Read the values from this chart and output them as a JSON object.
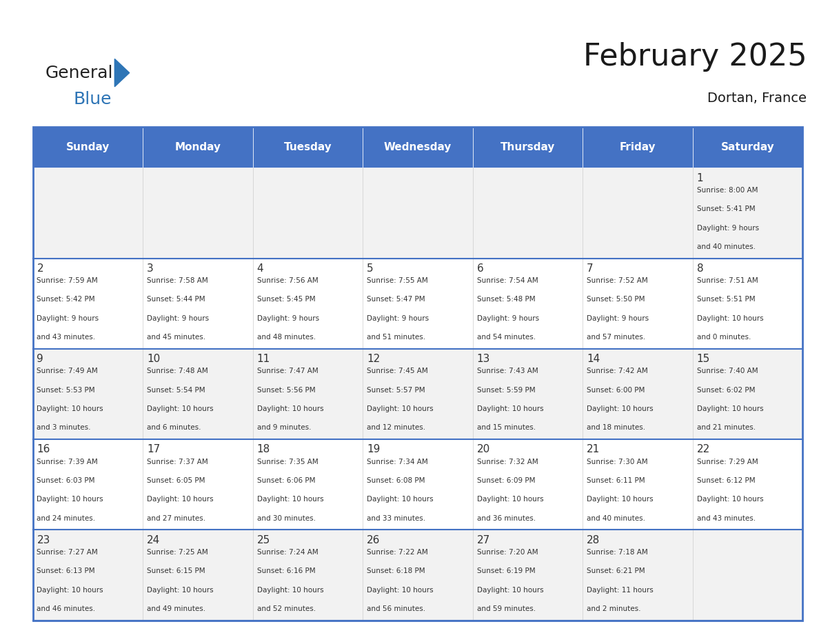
{
  "title": "February 2025",
  "subtitle": "Dortan, France",
  "header_bg": "#4472C4",
  "header_text_color": "#FFFFFF",
  "day_names": [
    "Sunday",
    "Monday",
    "Tuesday",
    "Wednesday",
    "Thursday",
    "Friday",
    "Saturday"
  ],
  "cell_bg_even": "#F2F2F2",
  "cell_bg_odd": "#FFFFFF",
  "border_color": "#4472C4",
  "text_color": "#333333",
  "number_color": "#333333",
  "calendar": [
    [
      null,
      null,
      null,
      null,
      null,
      null,
      {
        "day": 1,
        "sunrise": "8:00 AM",
        "sunset": "5:41 PM",
        "daylight": "9 hours and 40 minutes."
      }
    ],
    [
      {
        "day": 2,
        "sunrise": "7:59 AM",
        "sunset": "5:42 PM",
        "daylight": "9 hours and 43 minutes."
      },
      {
        "day": 3,
        "sunrise": "7:58 AM",
        "sunset": "5:44 PM",
        "daylight": "9 hours and 45 minutes."
      },
      {
        "day": 4,
        "sunrise": "7:56 AM",
        "sunset": "5:45 PM",
        "daylight": "9 hours and 48 minutes."
      },
      {
        "day": 5,
        "sunrise": "7:55 AM",
        "sunset": "5:47 PM",
        "daylight": "9 hours and 51 minutes."
      },
      {
        "day": 6,
        "sunrise": "7:54 AM",
        "sunset": "5:48 PM",
        "daylight": "9 hours and 54 minutes."
      },
      {
        "day": 7,
        "sunrise": "7:52 AM",
        "sunset": "5:50 PM",
        "daylight": "9 hours and 57 minutes."
      },
      {
        "day": 8,
        "sunrise": "7:51 AM",
        "sunset": "5:51 PM",
        "daylight": "10 hours and 0 minutes."
      }
    ],
    [
      {
        "day": 9,
        "sunrise": "7:49 AM",
        "sunset": "5:53 PM",
        "daylight": "10 hours and 3 minutes."
      },
      {
        "day": 10,
        "sunrise": "7:48 AM",
        "sunset": "5:54 PM",
        "daylight": "10 hours and 6 minutes."
      },
      {
        "day": 11,
        "sunrise": "7:47 AM",
        "sunset": "5:56 PM",
        "daylight": "10 hours and 9 minutes."
      },
      {
        "day": 12,
        "sunrise": "7:45 AM",
        "sunset": "5:57 PM",
        "daylight": "10 hours and 12 minutes."
      },
      {
        "day": 13,
        "sunrise": "7:43 AM",
        "sunset": "5:59 PM",
        "daylight": "10 hours and 15 minutes."
      },
      {
        "day": 14,
        "sunrise": "7:42 AM",
        "sunset": "6:00 PM",
        "daylight": "10 hours and 18 minutes."
      },
      {
        "day": 15,
        "sunrise": "7:40 AM",
        "sunset": "6:02 PM",
        "daylight": "10 hours and 21 minutes."
      }
    ],
    [
      {
        "day": 16,
        "sunrise": "7:39 AM",
        "sunset": "6:03 PM",
        "daylight": "10 hours and 24 minutes."
      },
      {
        "day": 17,
        "sunrise": "7:37 AM",
        "sunset": "6:05 PM",
        "daylight": "10 hours and 27 minutes."
      },
      {
        "day": 18,
        "sunrise": "7:35 AM",
        "sunset": "6:06 PM",
        "daylight": "10 hours and 30 minutes."
      },
      {
        "day": 19,
        "sunrise": "7:34 AM",
        "sunset": "6:08 PM",
        "daylight": "10 hours and 33 minutes."
      },
      {
        "day": 20,
        "sunrise": "7:32 AM",
        "sunset": "6:09 PM",
        "daylight": "10 hours and 36 minutes."
      },
      {
        "day": 21,
        "sunrise": "7:30 AM",
        "sunset": "6:11 PM",
        "daylight": "10 hours and 40 minutes."
      },
      {
        "day": 22,
        "sunrise": "7:29 AM",
        "sunset": "6:12 PM",
        "daylight": "10 hours and 43 minutes."
      }
    ],
    [
      {
        "day": 23,
        "sunrise": "7:27 AM",
        "sunset": "6:13 PM",
        "daylight": "10 hours and 46 minutes."
      },
      {
        "day": 24,
        "sunrise": "7:25 AM",
        "sunset": "6:15 PM",
        "daylight": "10 hours and 49 minutes."
      },
      {
        "day": 25,
        "sunrise": "7:24 AM",
        "sunset": "6:16 PM",
        "daylight": "10 hours and 52 minutes."
      },
      {
        "day": 26,
        "sunrise": "7:22 AM",
        "sunset": "6:18 PM",
        "daylight": "10 hours and 56 minutes."
      },
      {
        "day": 27,
        "sunrise": "7:20 AM",
        "sunset": "6:19 PM",
        "daylight": "10 hours and 59 minutes."
      },
      {
        "day": 28,
        "sunrise": "7:18 AM",
        "sunset": "6:21 PM",
        "daylight": "11 hours and 2 minutes."
      },
      null
    ]
  ],
  "logo_text_general": "General",
  "logo_text_blue": "Blue",
  "logo_color_general": "#222222",
  "logo_color_blue": "#2E75B6",
  "logo_triangle_color": "#2E75B6"
}
